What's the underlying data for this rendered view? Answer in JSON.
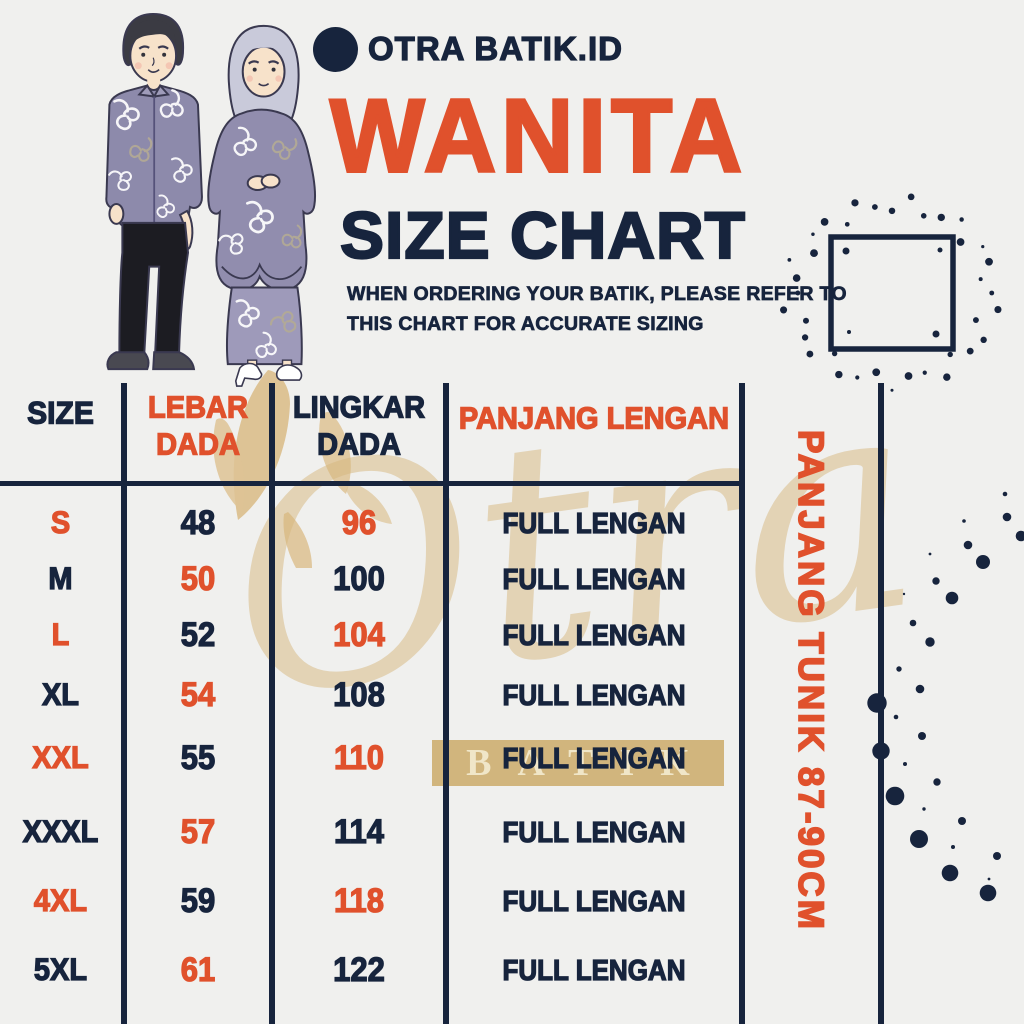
{
  "brand": {
    "name": "OTRA BATIK.ID"
  },
  "title": "WANITA",
  "subtitle": "SIZE CHART",
  "description": {
    "line1": "WHEN ORDERING YOUR BATIK, PLEASE REFER TO",
    "line2": "THIS CHART FOR ACCURATE SIZING"
  },
  "side_note": "PANJANG TUNIK 87-90CM",
  "watermark": {
    "script_text": "Otra",
    "band_text": "BATIK"
  },
  "colors": {
    "navy": "#17243d",
    "orange": "#e0512c",
    "background": "#f0f0ee",
    "gold": "#d9b87f",
    "band_gold": "#cbaa68"
  },
  "table": {
    "headers": [
      {
        "label": "SIZE",
        "color": "navy"
      },
      {
        "label": "LEBAR DADA",
        "color": "orange"
      },
      {
        "label": "LINGKAR DADA",
        "color": "navy"
      },
      {
        "label": "PANJANG LENGAN",
        "color": "orange"
      }
    ],
    "rows": [
      {
        "cells": [
          {
            "text": "S",
            "color": "orange"
          },
          {
            "text": "48",
            "color": "navy"
          },
          {
            "text": "96",
            "color": "orange"
          },
          {
            "text": "FULL LENGAN",
            "color": "navy"
          }
        ]
      },
      {
        "cells": [
          {
            "text": "M",
            "color": "navy"
          },
          {
            "text": "50",
            "color": "orange"
          },
          {
            "text": "100",
            "color": "navy"
          },
          {
            "text": "FULL LENGAN",
            "color": "navy"
          }
        ]
      },
      {
        "cells": [
          {
            "text": "L",
            "color": "orange"
          },
          {
            "text": "52",
            "color": "navy"
          },
          {
            "text": "104",
            "color": "orange"
          },
          {
            "text": "FULL LENGAN",
            "color": "navy"
          }
        ]
      },
      {
        "cells": [
          {
            "text": "XL",
            "color": "navy"
          },
          {
            "text": "54",
            "color": "orange"
          },
          {
            "text": "108",
            "color": "navy"
          },
          {
            "text": "FULL LENGAN",
            "color": "navy"
          }
        ]
      },
      {
        "cells": [
          {
            "text": "XXL",
            "color": "orange"
          },
          {
            "text": "55",
            "color": "navy"
          },
          {
            "text": "110",
            "color": "orange"
          },
          {
            "text": "FULL LENGAN",
            "color": "navy"
          }
        ]
      },
      {
        "cells": [
          {
            "text": "XXXL",
            "color": "navy"
          },
          {
            "text": "57",
            "color": "orange"
          },
          {
            "text": "114",
            "color": "navy"
          },
          {
            "text": "FULL LENGAN",
            "color": "navy"
          }
        ]
      },
      {
        "cells": [
          {
            "text": "4XL",
            "color": "orange"
          },
          {
            "text": "59",
            "color": "navy"
          },
          {
            "text": "118",
            "color": "orange"
          },
          {
            "text": "FULL LENGAN",
            "color": "navy"
          }
        ]
      },
      {
        "cells": [
          {
            "text": "5XL",
            "color": "navy"
          },
          {
            "text": "61",
            "color": "orange"
          },
          {
            "text": "122",
            "color": "navy"
          },
          {
            "text": "FULL LENGAN",
            "color": "navy"
          }
        ]
      }
    ]
  }
}
